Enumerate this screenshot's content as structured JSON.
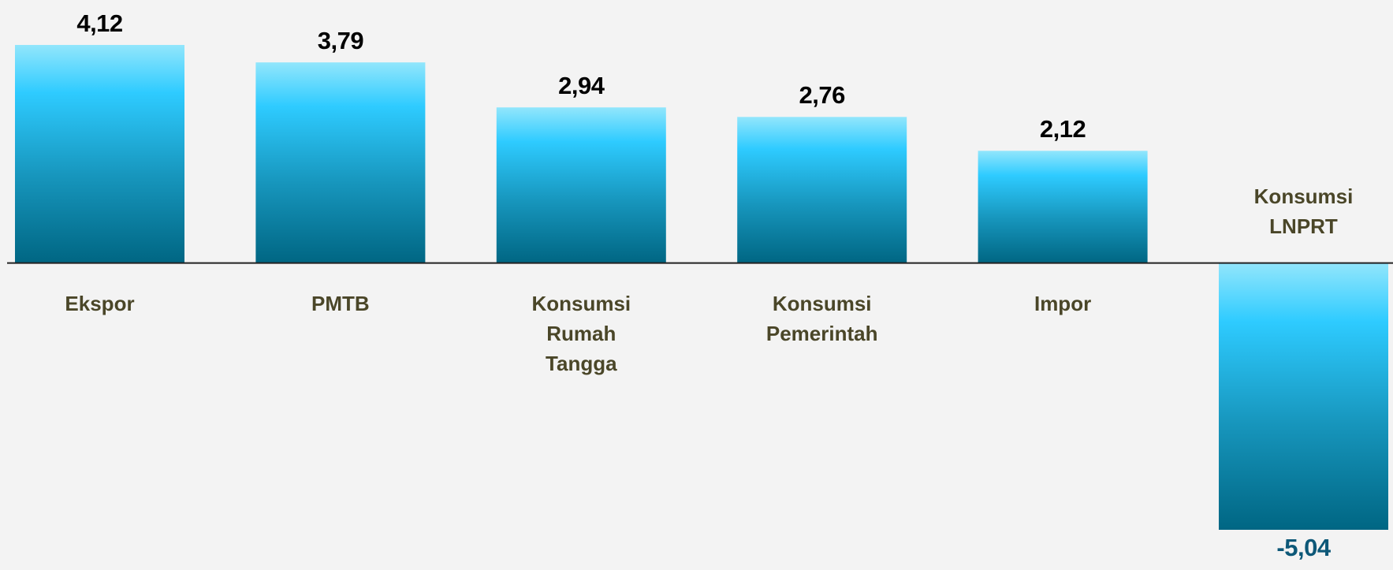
{
  "chart_data": {
    "type": "bar",
    "categories": [
      "Ekspor",
      "PMTB",
      "Konsumsi Rumah Tangga",
      "Konsumsi Pemerintah",
      "Impor",
      "Konsumsi LNPRT"
    ],
    "values": [
      4.12,
      3.79,
      2.94,
      2.76,
      2.12,
      -5.04
    ],
    "value_labels": [
      "4,12",
      "3,79",
      "2,94",
      "2,76",
      "2,12",
      "-5,04"
    ],
    "color": "#2ecbff"
  }
}
